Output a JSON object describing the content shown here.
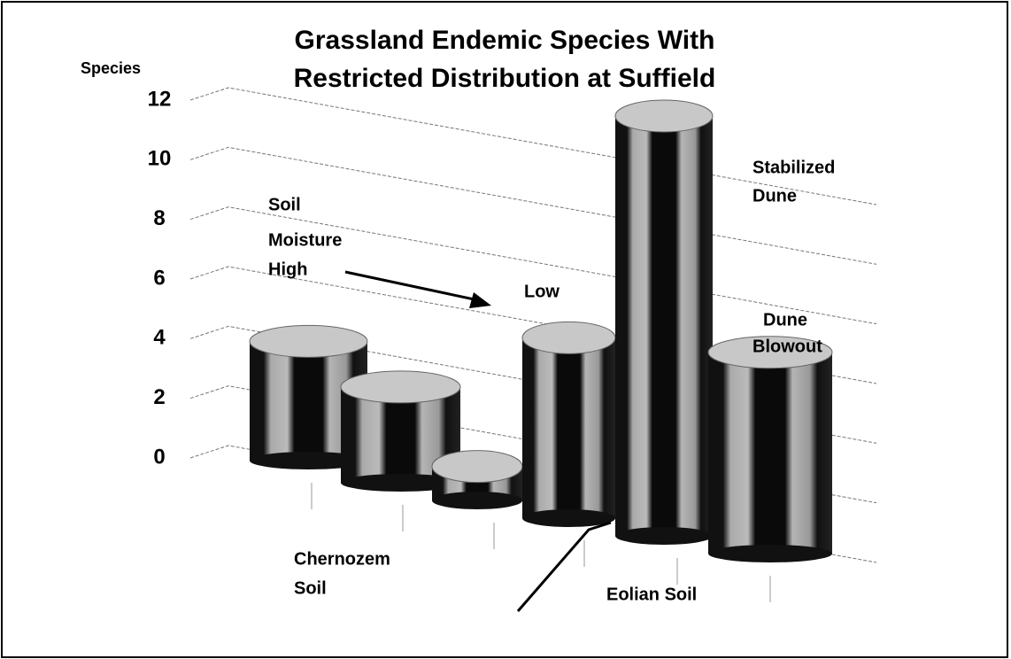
{
  "chart_data": {
    "type": "bar3d",
    "title": [
      "Grassland Endemic Species With",
      "Restricted Distribution at Suffield"
    ],
    "y_label": "Species",
    "categories": [
      null,
      null,
      null,
      null,
      null,
      null
    ],
    "values": [
      4,
      3,
      1,
      5,
      11,
      5
    ],
    "ylim": [
      0,
      12
    ],
    "yticks": [
      0,
      2,
      4,
      6,
      8,
      10,
      12
    ],
    "grid": true,
    "annotations": {
      "moisture": [
        "Soil",
        "Moisture",
        "High"
      ],
      "low": "Low",
      "stabilized": [
        "Stabilized",
        "Dune"
      ],
      "blowout": [
        "Dune",
        "Blowout"
      ],
      "chernozem": [
        "Chernozem",
        "Soil"
      ],
      "eolian": "Eolian Soil"
    }
  }
}
